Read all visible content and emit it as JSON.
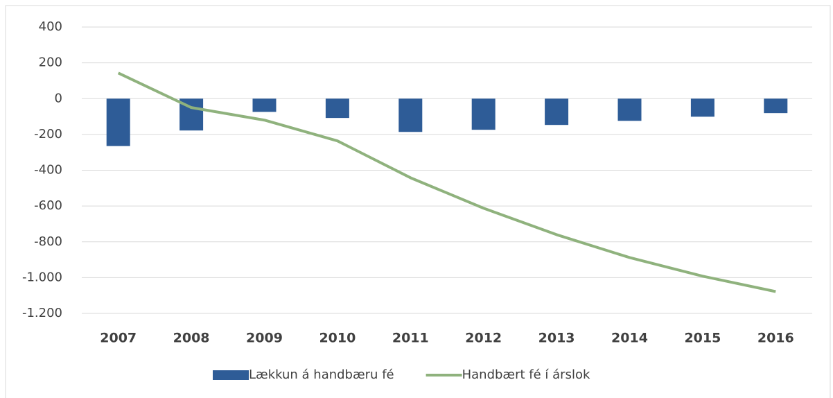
{
  "chart_data": {
    "type": "bar",
    "categories": [
      "2007",
      "2008",
      "2009",
      "2010",
      "2011",
      "2012",
      "2013",
      "2014",
      "2015",
      "2016"
    ],
    "series": [
      {
        "name": "Lækkun á handbæru fé",
        "type": "bar",
        "color": "#2e5c97",
        "values": [
          -265,
          -178,
          -74,
          -108,
          -186,
          -174,
          -147,
          -124,
          -101,
          -81
        ]
      },
      {
        "name": "Handbært fé í árslok",
        "type": "line",
        "color": "#8fb27d",
        "values": [
          143,
          -50,
          -120,
          -236,
          -442,
          -612,
          -760,
          -888,
          -992,
          -1078
        ]
      }
    ],
    "ylim": [
      -1200,
      400
    ],
    "yticks": [
      {
        "value": -1200,
        "label": "-1.200"
      },
      {
        "value": -1000,
        "label": "-1.000"
      },
      -800,
      -600,
      -400,
      -200,
      0,
      200,
      400
    ],
    "grid": true,
    "legend": "bottom"
  }
}
